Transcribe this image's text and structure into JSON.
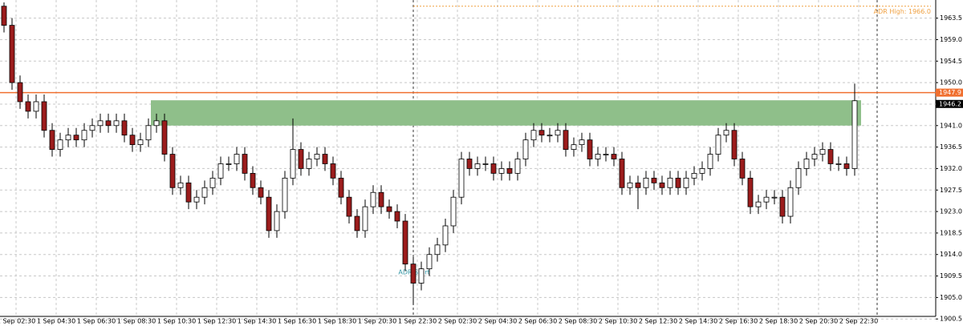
{
  "chart_data": {
    "type": "candlestick",
    "xticks": [
      "1 Sep 02:30",
      "1 Sep 04:30",
      "1 Sep 06:30",
      "1 Sep 08:30",
      "1 Sep 10:30",
      "1 Sep 12:30",
      "1 Sep 14:30",
      "1 Sep 16:30",
      "1 Sep 18:30",
      "1 Sep 20:30",
      "1 Sep 22:30",
      "2 Sep 02:30",
      "2 Sep 04:30",
      "2 Sep 06:30",
      "2 Sep 08:30",
      "2 Sep 10:30",
      "2 Sep 12:30",
      "2 Sep 14:30",
      "2 Sep 16:30",
      "2 Sep 18:30",
      "2 Sep 20:30",
      "2 Sep 22:30"
    ],
    "ylim": [
      1900.2,
      1967.3
    ],
    "yticks": [
      1900.5,
      {
        "value": 1905,
        "label": "1905.0"
      },
      1909.5,
      {
        "value": 1914,
        "label": "1914.0"
      },
      1918.5,
      {
        "value": 1923,
        "label": "1923.0"
      },
      1927.5,
      {
        "value": 1932,
        "label": "1932.0"
      },
      1936.5,
      {
        "value": 1941,
        "label": "1941.0"
      },
      1945.5,
      {
        "value": 1950,
        "label": "1950.0"
      },
      1954.5,
      {
        "value": 1959,
        "label": "1959.0"
      },
      1963.5
    ],
    "grid": true,
    "up_color": "#ffffff",
    "down_color": "#9b1c1c",
    "open": [
      1966,
      1962,
      1950,
      1946,
      1944,
      1946,
      1940,
      1936,
      1938,
      1939,
      1938,
      1940,
      1941,
      1942,
      1941,
      1942,
      1939,
      1937,
      1938,
      1941,
      1942,
      1935,
      1928,
      1929,
      1925,
      1926,
      1928,
      1930,
      1933,
      1933,
      1935,
      1931,
      1928,
      1926,
      1919,
      1923,
      1930,
      1936,
      1932,
      1934,
      1935,
      1933,
      1930,
      1926,
      1922,
      1919,
      1924,
      1927,
      1924,
      1923,
      1921,
      1912,
      1908,
      1911,
      1914,
      1916,
      1920,
      1926,
      1934,
      1932,
      1933,
      1933,
      1931,
      1932,
      1931,
      1934,
      1938,
      1940,
      1939,
      1939,
      1940,
      1936,
      1937,
      1938,
      1934,
      1935,
      1935,
      1934,
      1928,
      1929,
      1928,
      1930,
      1929,
      1928,
      1930,
      1928,
      1930,
      1931,
      1932,
      1935,
      1939,
      1940,
      1934,
      1930,
      1924,
      1925,
      1926,
      1926,
      1922,
      1928,
      1932,
      1934,
      1935,
      1936,
      1933,
      1933,
      1932
    ],
    "high": [
      1966.8,
      1963.5,
      1951.5,
      1947.5,
      1947.5,
      1947.5,
      1941.5,
      1939.5,
      1940.5,
      1940.5,
      1941.5,
      1942.5,
      1943.5,
      1943.5,
      1943.5,
      1943.5,
      1940.5,
      1939.5,
      1942.5,
      1943.5,
      1943.5,
      1936.5,
      1930.5,
      1930.5,
      1927.5,
      1929.5,
      1931.5,
      1934.5,
      1934.5,
      1936.5,
      1936.5,
      1932.5,
      1929.5,
      1927.5,
      1924.5,
      1931.5,
      1942.5,
      1937.5,
      1935.5,
      1936.5,
      1936.5,
      1934.5,
      1931.5,
      1927.5,
      1923.5,
      1925.5,
      1928.5,
      1928.5,
      1925.5,
      1924.5,
      1922.5,
      1913.5,
      1912.5,
      1915.5,
      1917.5,
      1921.5,
      1927.5,
      1935.5,
      1935.5,
      1934.5,
      1934.5,
      1934.5,
      1933.5,
      1933.5,
      1935.5,
      1939.5,
      1941.5,
      1941.5,
      1940.5,
      1941.5,
      1941.5,
      1938.5,
      1939.5,
      1939.5,
      1936.5,
      1936.5,
      1936.5,
      1935.5,
      1930.5,
      1930.5,
      1931.5,
      1931.5,
      1930.5,
      1931.5,
      1931.5,
      1931.5,
      1932.5,
      1933.5,
      1936.5,
      1940.5,
      1941.5,
      1941.5,
      1935.5,
      1931.5,
      1926.5,
      1927.5,
      1927.5,
      1927.5,
      1929.5,
      1933.5,
      1935.5,
      1936.5,
      1937.5,
      1937.5,
      1934.5,
      1934.5,
      1949.8
    ],
    "low": [
      1960.5,
      1948.5,
      1944.5,
      1942.5,
      1942.5,
      1938.5,
      1934.5,
      1934.5,
      1936.5,
      1936.5,
      1936.5,
      1938.5,
      1939.5,
      1939.5,
      1939.5,
      1937.5,
      1935.5,
      1935.5,
      1936.5,
      1939.5,
      1933.5,
      1926.5,
      1926.5,
      1923.5,
      1923.5,
      1924.5,
      1926.5,
      1928.5,
      1931.5,
      1931.5,
      1929.5,
      1926.5,
      1924.5,
      1917.5,
      1917.5,
      1921.5,
      1928.5,
      1930.5,
      1930.5,
      1932.5,
      1931.5,
      1928.5,
      1924.5,
      1920.5,
      1917.5,
      1917.5,
      1922.5,
      1922.5,
      1921.5,
      1919.5,
      1910.5,
      1903.5,
      1906.5,
      1909.5,
      1912.5,
      1914.5,
      1918.5,
      1924.5,
      1930.5,
      1930.5,
      1931.5,
      1929.5,
      1929.5,
      1929.5,
      1929.5,
      1932.5,
      1936.5,
      1937.5,
      1937.5,
      1937.5,
      1934.5,
      1934.5,
      1935.5,
      1932.5,
      1932.5,
      1933.5,
      1932.5,
      1926.5,
      1926.5,
      1923.5,
      1926.5,
      1927.5,
      1926.5,
      1926.5,
      1926.5,
      1926.5,
      1928.5,
      1929.5,
      1930.5,
      1933.5,
      1937.5,
      1932.5,
      1928.5,
      1922.5,
      1922.5,
      1923.5,
      1924.5,
      1920.5,
      1920.5,
      1926.5,
      1930.5,
      1932.5,
      1933.5,
      1931.5,
      1931.5,
      1930.5,
      1930.5
    ],
    "close": [
      1962,
      1950,
      1946,
      1944,
      1946,
      1940,
      1936,
      1938,
      1939,
      1938,
      1940,
      1941,
      1942,
      1941,
      1942,
      1939,
      1937,
      1938,
      1941,
      1942,
      1935,
      1928,
      1929,
      1925,
      1926,
      1928,
      1930,
      1933,
      1933,
      1935,
      1931,
      1928,
      1926,
      1919,
      1923,
      1930,
      1936,
      1932,
      1934,
      1935,
      1933,
      1930,
      1926,
      1922,
      1919,
      1924,
      1927,
      1924,
      1923,
      1921,
      1912,
      1908,
      1911,
      1914,
      1916,
      1920,
      1926,
      1934,
      1932,
      1933,
      1933,
      1931,
      1932,
      1931,
      1934,
      1938,
      1940,
      1939,
      1939,
      1940,
      1936,
      1937,
      1938,
      1934,
      1935,
      1935,
      1934,
      1928,
      1929,
      1928,
      1930,
      1929,
      1928,
      1930,
      1928,
      1930,
      1931,
      1932,
      1935,
      1939,
      1940,
      1934,
      1930,
      1924,
      1925,
      1926,
      1926,
      1922,
      1928,
      1932,
      1934,
      1935,
      1936,
      1933,
      1933,
      1932,
      1946.2
    ],
    "zone": [
      1941.0,
      1946.3
    ],
    "zone_color": "#8fbf8a",
    "adr_high": {
      "value": 1966.0,
      "label": "ADR High: 1966.0"
    },
    "adr_start_label": "ADR Start",
    "price_line": 1947.9,
    "last_price": 1946.2
  }
}
